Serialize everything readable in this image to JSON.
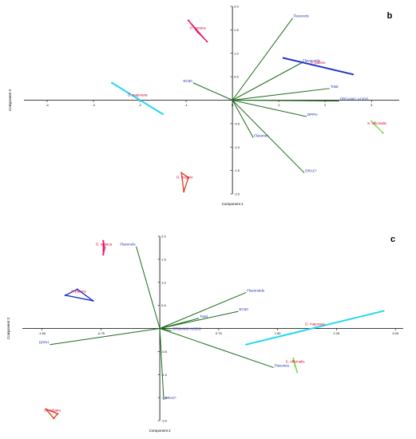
{
  "chart_data": [
    {
      "type": "scatter",
      "panel": "b",
      "xlabel": "Component 1",
      "ylabel": "Component 3",
      "xlim": [
        -4.5,
        3.6
      ],
      "ylim": [
        -2.0,
        2.0
      ],
      "xticks": [
        "-4",
        "-3",
        "-2",
        "-1",
        "0",
        "1",
        "2",
        "3"
      ],
      "yticks": [
        "2.0",
        "1.5",
        "1.0",
        "0.5",
        "-0.5",
        "-1.0",
        "-1.5",
        "-2.0"
      ],
      "xtick_values": [
        -4,
        -3,
        -2,
        -1,
        0,
        1,
        2,
        3
      ],
      "ytick_values": [
        2.0,
        1.5,
        1.0,
        0.5,
        -0.5,
        -1.0,
        -1.5,
        -2.0
      ],
      "loadings": [
        {
          "label": "Flavonols",
          "x": 1.3,
          "y": 1.75
        },
        {
          "label": "Flavonoids",
          "x": 1.5,
          "y": 0.8
        },
        {
          "label": "Total",
          "x": 2.1,
          "y": 0.25
        },
        {
          "label": "EC50",
          "x": -0.85,
          "y": 0.37
        },
        {
          "label": "ORGANIC ACIDS",
          "x": 2.3,
          "y": -0.02
        },
        {
          "label": "DPPH",
          "x": 1.6,
          "y": -0.35
        },
        {
          "label": "Flavones",
          "x": 0.45,
          "y": -0.8
        },
        {
          "label": "ORAC*",
          "x": 1.55,
          "y": -1.55
        }
      ],
      "groups": [
        {
          "label": "O. vulgare",
          "color": "#e2452b",
          "points": [
            [
              -1.1,
              -1.55
            ],
            [
              -0.95,
              -1.65
            ],
            [
              -1.05,
              -1.95
            ]
          ]
        },
        {
          "label": "O. majorana",
          "color": "#23d8ee",
          "points": [
            [
              -2.6,
              0.37
            ],
            [
              -1.5,
              -0.3
            ]
          ]
        },
        {
          "label": "O. syriaca",
          "color": "#e8166f",
          "points": [
            [
              -0.95,
              1.7
            ],
            [
              -0.55,
              1.25
            ],
            [
              -0.75,
              1.45
            ]
          ]
        },
        {
          "label": "P. patens",
          "color": "#1f34c9",
          "points": [
            [
              1.1,
              0.9
            ],
            [
              2.6,
              0.55
            ]
          ]
        },
        {
          "label": "S. officinalis",
          "color": "#77e04f",
          "points": [
            [
              3.0,
              -0.45
            ],
            [
              3.25,
              -0.7
            ],
            [
              3.1,
              -0.55
            ]
          ]
        }
      ]
    },
    {
      "type": "scatter",
      "panel": "c",
      "xlabel": "Component 2",
      "ylabel": "Component 3",
      "xlim": [
        -1.75,
        3.1
      ],
      "ylim": [
        -2.0,
        2.0
      ],
      "xticks": [
        "-1.50",
        "-0.75",
        "0.75",
        "1.50",
        "2.25",
        "3.00"
      ],
      "yticks": [
        "2.0",
        "1.5",
        "1.0",
        "0.5",
        "-0.5",
        "-1.0",
        "-1.5",
        "-2.0"
      ],
      "xtick_values": [
        -1.5,
        -0.75,
        0.75,
        1.5,
        2.25,
        3.0
      ],
      "ytick_values": [
        2.0,
        1.5,
        1.0,
        0.5,
        -0.5,
        -1.0,
        -1.5,
        -2.0
      ],
      "loadings": [
        {
          "label": "Flavonols",
          "x": -0.3,
          "y": 1.78
        },
        {
          "label": "Flavonoids",
          "x": 1.1,
          "y": 0.78
        },
        {
          "label": "EC50",
          "x": 1.0,
          "y": 0.37
        },
        {
          "label": "Total",
          "x": 0.5,
          "y": 0.22
        },
        {
          "label": "ORGANIC ACIDS",
          "x": 0.15,
          "y": -0.05
        },
        {
          "label": "DPPH",
          "x": -1.4,
          "y": -0.35
        },
        {
          "label": "Flavones",
          "x": 1.45,
          "y": -0.85
        },
        {
          "label": "ORAC*",
          "x": 0.05,
          "y": -1.55
        }
      ],
      "groups": [
        {
          "label": "O. syriaca",
          "color": "#e8166f",
          "points": [
            [
              -0.72,
              1.9
            ],
            [
              -0.72,
              1.6
            ],
            [
              -0.7,
              1.75
            ]
          ]
        },
        {
          "label": "P. patens",
          "color": "#1f34c9",
          "points": [
            [
              -1.05,
              0.85
            ],
            [
              -0.85,
              0.6
            ],
            [
              -1.2,
              0.72
            ]
          ]
        },
        {
          "label": "O. vulgare",
          "color": "#e2452b",
          "points": [
            [
              -1.45,
              -1.75
            ],
            [
              -1.35,
              -1.95
            ],
            [
              -1.3,
              -1.85
            ]
          ]
        },
        {
          "label": "O. majorana",
          "color": "#23d8ee",
          "points": [
            [
              1.1,
              -0.35
            ],
            [
              2.85,
              0.38
            ]
          ]
        },
        {
          "label": "S. officinalis",
          "color": "#77e04f",
          "points": [
            [
              1.7,
              -0.65
            ],
            [
              1.75,
              -0.95
            ],
            [
              1.72,
              -0.8
            ]
          ]
        }
      ]
    }
  ]
}
